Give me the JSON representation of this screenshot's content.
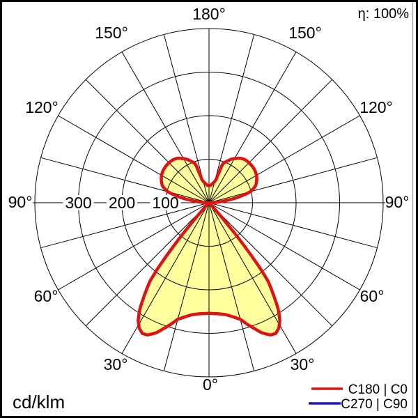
{
  "polar_display": {
    "angle_labels": [
      "180°",
      "150°",
      "150°",
      "120°",
      "120°",
      "90°",
      "90°",
      "60°",
      "60°",
      "30°",
      "30°",
      "0°"
    ],
    "radial_labels": [
      "300",
      "200",
      "100"
    ]
  },
  "chart_data": {
    "type": "polar",
    "subtype": "luminous-intensity-distribution",
    "title": "",
    "unit": "cd/klm",
    "corner_labels": {
      "top_right": "η: 100%",
      "bottom_left": "cd/klm"
    },
    "efficiency_percent": 100,
    "angle_ticks_deg": [
      0,
      30,
      60,
      90,
      120,
      150,
      180
    ],
    "spoke_step_deg": 15,
    "radial_ticks": [
      100,
      200,
      300
    ],
    "radial_max": 400,
    "grid": true,
    "legend_position": "bottom-right",
    "series": [
      {
        "name": "C180 | C0",
        "color": "#dd1414",
        "fill_color": "#ffff9e",
        "symmetric": true,
        "gamma_deg": [
          0,
          3,
          5,
          8,
          10,
          12,
          15,
          18,
          20,
          22,
          25,
          27,
          29,
          31,
          33,
          35,
          37,
          38,
          39,
          40,
          41,
          42,
          44,
          47,
          50,
          60,
          70,
          80,
          85,
          88,
          90,
          92,
          95,
          98,
          100,
          103,
          105,
          108,
          110,
          115,
          120,
          125,
          130,
          135,
          140,
          145,
          150,
          153,
          156,
          158,
          160,
          161,
          162,
          163,
          165,
          170,
          175,
          180
        ],
        "values_cd_per_klm": [
          254,
          255,
          256,
          259,
          263,
          268,
          277,
          296,
          308,
          322,
          335,
          337,
          330,
          316,
          292,
          258,
          225,
          190,
          140,
          95,
          45,
          15,
          4,
          1,
          0,
          0,
          0,
          0,
          0,
          0,
          2,
          12,
          25,
          45,
          62,
          85,
          98,
          108,
          114,
          121,
          126,
          129,
          130,
          130,
          129,
          125,
          117,
          112,
          105,
          101,
          97,
          88,
          70,
          56,
          50,
          44,
          40,
          39
        ]
      },
      {
        "name": "C270 | C90",
        "color": "#1515cd",
        "hidden_behind_first_series": true
      }
    ]
  }
}
